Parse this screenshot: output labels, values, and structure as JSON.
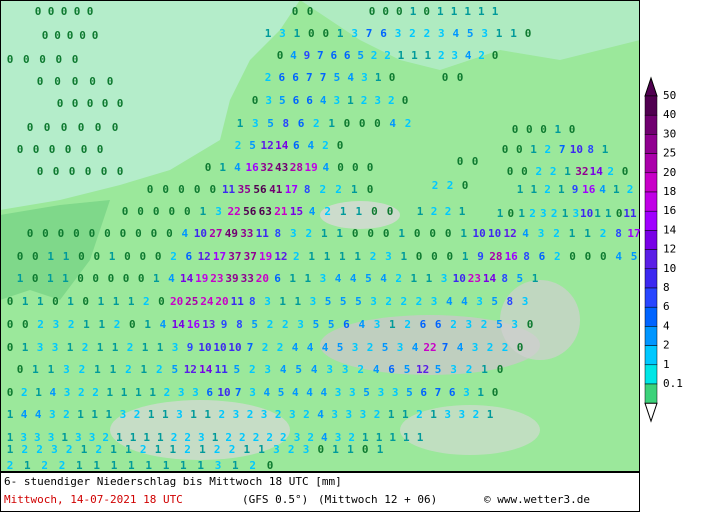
{
  "map": {
    "rows": [
      [
        0,
        0,
        0,
        0,
        0
      ],
      [
        0,
        0
      ],
      [
        0,
        0,
        0,
        1,
        0,
        1,
        1,
        1,
        1,
        1
      ],
      [
        1,
        3,
        1,
        0,
        0,
        1,
        3,
        7,
        6,
        3,
        2,
        2,
        3,
        4,
        5,
        3,
        1,
        1,
        0
      ],
      [
        0,
        0,
        0,
        0,
        0
      ],
      [
        0,
        4,
        9,
        7,
        6,
        6,
        5,
        2,
        2,
        1,
        1,
        1,
        2,
        3,
        4,
        2,
        0
      ],
      [
        0,
        0,
        0,
        0,
        0
      ],
      [
        2,
        6,
        6,
        7,
        7,
        5,
        4,
        3,
        1,
        0
      ],
      [
        0,
        0
      ],
      [
        0,
        0,
        0,
        0,
        0
      ],
      [
        0,
        3,
        5,
        6,
        6,
        4,
        3,
        1,
        2,
        3,
        2,
        0
      ],
      [
        0,
        0,
        0,
        0,
        0
      ],
      [
        1,
        3,
        5,
        8,
        6,
        2,
        1,
        0,
        0,
        0,
        4,
        2
      ],
      [
        0,
        0,
        0,
        0,
        0,
        0
      ],
      [
        0,
        0,
        0,
        1,
        0
      ],
      [
        2,
        5,
        12,
        14,
        6,
        4,
        2,
        0
      ],
      [
        0,
        0,
        0,
        0,
        0,
        0
      ],
      [
        0,
        0,
        1,
        2,
        7,
        10,
        8,
        1
      ],
      [
        0,
        1,
        4,
        16,
        32,
        43,
        28,
        19,
        4,
        0,
        0,
        0
      ],
      [
        0,
        0,
        0,
        0,
        0,
        0
      ],
      [
        0,
        0
      ],
      [
        0,
        0,
        2,
        2,
        1,
        32,
        14,
        2,
        0
      ],
      [
        0,
        0,
        0,
        0,
        0,
        11,
        35,
        56,
        41,
        17,
        8,
        2,
        2,
        1,
        0
      ],
      [
        2,
        2,
        0
      ],
      [
        1,
        1,
        2,
        1,
        9,
        16,
        4,
        1,
        2
      ],
      [
        0,
        0,
        0,
        0,
        0,
        1,
        3,
        22,
        56,
        63,
        21,
        15,
        4,
        2,
        1,
        1,
        0,
        0
      ],
      [
        1,
        2,
        2,
        1
      ],
      [
        1,
        0,
        1,
        2,
        3,
        2,
        1,
        3,
        10,
        1,
        1,
        0,
        11
      ],
      [
        0,
        0,
        0,
        0,
        0,
        0,
        0,
        0,
        0,
        0,
        4,
        10,
        27,
        49,
        33,
        11,
        8,
        3,
        2,
        1,
        1,
        0,
        0,
        0,
        1,
        0,
        0,
        0,
        1,
        10,
        10,
        12,
        4,
        3,
        2,
        1,
        1,
        2,
        8,
        17
      ],
      [
        0,
        0,
        1,
        1,
        0,
        0,
        1,
        0,
        0,
        0,
        2,
        6,
        12,
        17,
        37,
        37,
        19,
        12,
        2,
        1,
        1,
        1,
        1,
        2,
        3,
        1,
        0,
        0,
        0,
        1,
        9,
        28,
        16,
        8,
        6,
        2,
        0,
        0,
        0,
        4,
        5
      ],
      [
        1,
        0,
        1,
        1,
        0,
        0,
        0,
        0,
        0,
        1,
        4,
        14,
        19,
        23,
        39,
        33,
        20,
        6,
        1,
        1,
        3,
        4,
        4,
        5,
        4,
        2,
        1,
        1,
        3,
        10,
        23,
        14,
        8,
        5,
        1
      ],
      [
        0,
        1,
        1,
        0,
        1,
        0,
        1,
        1,
        1,
        2,
        0,
        20,
        25,
        24,
        20,
        11,
        8,
        3,
        1,
        1,
        3,
        5,
        5,
        5,
        3,
        2,
        2,
        2,
        3,
        4,
        4,
        3,
        5,
        8,
        3
      ],
      [
        0,
        0,
        2,
        3,
        2,
        1,
        1,
        2,
        0,
        1,
        4,
        14,
        16,
        13,
        9,
        8,
        5,
        2,
        2,
        3,
        5,
        5,
        6,
        4,
        3,
        1,
        2,
        6,
        6,
        2,
        3,
        2,
        5,
        3,
        0
      ],
      [
        0,
        1,
        3,
        3,
        1,
        2,
        1,
        1,
        2,
        1,
        1,
        3,
        9,
        10,
        10,
        10,
        7,
        2,
        2,
        4,
        4,
        4,
        5,
        3,
        2,
        5,
        3,
        4,
        22,
        7,
        4,
        3,
        2,
        2,
        0
      ],
      [
        0,
        1,
        1,
        3,
        2,
        1,
        1,
        2,
        1,
        2,
        5,
        12,
        14,
        11,
        5,
        2,
        3,
        4,
        5,
        4,
        3,
        3,
        2,
        4,
        6,
        5,
        12,
        5,
        3,
        2,
        1,
        0
      ],
      [
        0,
        2,
        1,
        4,
        3,
        2,
        2,
        1,
        1,
        1,
        1,
        2,
        3,
        3,
        6,
        10,
        7,
        3,
        4,
        5,
        4,
        4,
        4,
        3,
        3,
        5,
        3,
        3,
        5,
        6,
        7,
        6,
        3,
        1,
        0
      ],
      [
        1,
        4,
        4,
        3,
        2,
        1,
        1,
        1,
        3,
        2,
        1,
        1,
        3,
        1,
        1,
        2,
        3,
        2,
        3,
        2,
        3,
        2,
        4,
        3,
        3,
        3,
        2,
        1,
        1,
        2,
        1,
        3,
        3,
        2,
        1
      ],
      [
        1,
        3,
        3,
        3,
        1,
        3,
        3,
        2,
        1,
        1,
        1,
        1,
        2,
        2,
        3,
        1,
        2,
        2,
        2,
        2,
        2,
        3,
        2,
        4,
        3,
        2,
        1,
        1,
        1,
        1,
        1
      ],
      [
        1,
        2,
        2,
        3,
        2,
        1,
        2,
        1,
        1,
        2,
        1,
        1,
        2,
        1,
        2,
        2,
        1,
        1,
        3,
        2,
        3,
        0,
        1,
        1,
        0,
        1
      ],
      [
        2,
        1,
        2,
        2,
        1,
        1,
        1,
        1,
        1,
        1,
        1,
        1,
        3,
        1,
        2,
        0
      ]
    ]
  },
  "legend": {
    "levels": [
      0.1,
      1,
      2,
      4,
      6,
      8,
      10,
      12,
      14,
      16,
      18,
      20,
      25,
      30,
      40,
      50
    ],
    "colors": [
      "#3cd27a",
      "#00e6e6",
      "#00c8ff",
      "#0096ff",
      "#0064ff",
      "#2846ff",
      "#3c28f0",
      "#5a1ee6",
      "#7800e6",
      "#a000ff",
      "#c000e6",
      "#c800c8",
      "#aa00aa",
      "#900090",
      "#700070",
      "#500050"
    ]
  },
  "footer": {
    "title": "6- stuendiger Niederschlag bis Mittwoch 18 UTC [mm]",
    "date": "Mittwoch, 14-07-2021  18 UTC",
    "model": "(GFS 0.5°)",
    "run": "(Mittwoch 12 + 06)",
    "credit": "© www.wetter3.de"
  }
}
